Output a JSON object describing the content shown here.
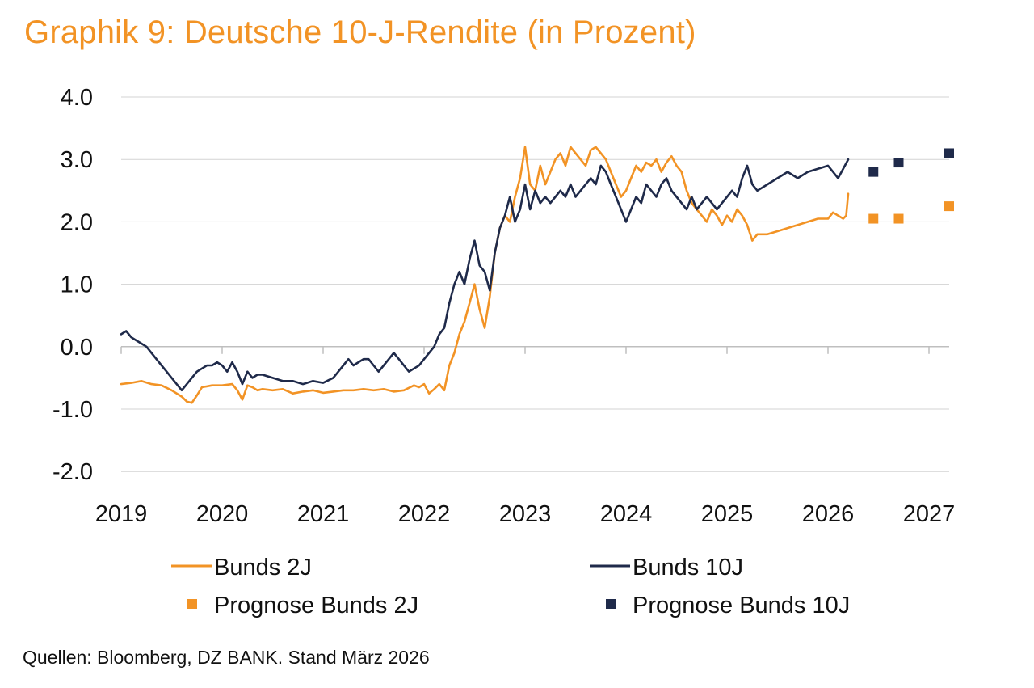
{
  "title": "Graphik 9: Deutsche 10-J-Rendite (in Prozent)",
  "source": "Quellen: Bloomberg, DZ BANK. Stand März 2026",
  "colors": {
    "bunds_2j": "#F29325",
    "bunds_10j": "#1F2A4A",
    "grid": "#D3D3D3",
    "title": "#F29325"
  },
  "chart_data": {
    "type": "line",
    "title": "Graphik 9: Deutsche 10-J-Rendite (in Prozent)",
    "xlabel": "",
    "ylabel": "",
    "xlim": [
      2019.0,
      2027.1
    ],
    "ylim": [
      -2.0,
      4.0
    ],
    "grid": "horizontal",
    "legend_position": "bottom",
    "x_ticks": [
      "2019",
      "2020",
      "2021",
      "2022",
      "2023",
      "2024",
      "2025",
      "2026",
      "2027"
    ],
    "y_ticks": [
      "4.0",
      "3.0",
      "2.0",
      "1.0",
      "0.0",
      "-1.0",
      "-2.0"
    ],
    "series": [
      {
        "name": "Bunds 2J",
        "kind": "line",
        "color": "#F29325",
        "x": [
          2019.0,
          2019.1,
          2019.2,
          2019.3,
          2019.4,
          2019.5,
          2019.6,
          2019.65,
          2019.7,
          2019.75,
          2019.8,
          2019.9,
          2020.0,
          2020.1,
          2020.15,
          2020.2,
          2020.25,
          2020.3,
          2020.35,
          2020.4,
          2020.5,
          2020.6,
          2020.7,
          2020.8,
          2020.9,
          2021.0,
          2021.1,
          2021.2,
          2021.3,
          2021.4,
          2021.5,
          2021.6,
          2021.7,
          2021.8,
          2021.9,
          2021.95,
          2022.0,
          2022.05,
          2022.1,
          2022.15,
          2022.2,
          2022.25,
          2022.3,
          2022.35,
          2022.4,
          2022.45,
          2022.5,
          2022.55,
          2022.6,
          2022.65,
          2022.7,
          2022.75,
          2022.8,
          2022.85,
          2022.9,
          2022.95,
          2023.0,
          2023.05,
          2023.1,
          2023.15,
          2023.2,
          2023.25,
          2023.3,
          2023.35,
          2023.4,
          2023.45,
          2023.5,
          2023.55,
          2023.6,
          2023.65,
          2023.7,
          2023.75,
          2023.8,
          2023.85,
          2023.9,
          2023.95,
          2024.0,
          2024.05,
          2024.1,
          2024.15,
          2024.2,
          2024.25,
          2024.3,
          2024.35,
          2024.4,
          2024.45,
          2024.5,
          2024.55,
          2024.6,
          2024.65,
          2024.7,
          2024.75,
          2024.8,
          2024.85,
          2024.9,
          2024.95,
          2025.0,
          2025.05,
          2025.1,
          2025.15,
          2025.2,
          2025.25,
          2025.3,
          2025.4,
          2025.5,
          2025.6,
          2025.7,
          2025.8,
          2025.9,
          2026.0,
          2026.05,
          2026.1,
          2026.15,
          2026.18,
          2026.2
        ],
        "y": [
          -0.6,
          -0.58,
          -0.55,
          -0.6,
          -0.62,
          -0.7,
          -0.8,
          -0.88,
          -0.9,
          -0.78,
          -0.65,
          -0.62,
          -0.62,
          -0.6,
          -0.7,
          -0.85,
          -0.62,
          -0.65,
          -0.7,
          -0.68,
          -0.7,
          -0.68,
          -0.75,
          -0.72,
          -0.7,
          -0.74,
          -0.72,
          -0.7,
          -0.7,
          -0.68,
          -0.7,
          -0.68,
          -0.72,
          -0.7,
          -0.62,
          -0.65,
          -0.6,
          -0.75,
          -0.68,
          -0.6,
          -0.7,
          -0.3,
          -0.1,
          0.2,
          0.4,
          0.7,
          1.0,
          0.6,
          0.3,
          0.8,
          1.5,
          1.9,
          2.1,
          2.0,
          2.4,
          2.7,
          3.2,
          2.6,
          2.5,
          2.9,
          2.6,
          2.8,
          3.0,
          3.1,
          2.9,
          3.2,
          3.1,
          3.0,
          2.9,
          3.15,
          3.2,
          3.1,
          3.0,
          2.8,
          2.6,
          2.4,
          2.5,
          2.7,
          2.9,
          2.8,
          2.95,
          2.9,
          3.0,
          2.8,
          2.95,
          3.05,
          2.9,
          2.8,
          2.5,
          2.3,
          2.2,
          2.1,
          2.0,
          2.2,
          2.1,
          1.95,
          2.1,
          2.0,
          2.2,
          2.1,
          1.95,
          1.7,
          1.8,
          1.8,
          1.85,
          1.9,
          1.95,
          2.0,
          2.05,
          2.05,
          2.15,
          2.1,
          2.05,
          2.1,
          2.45
        ]
      },
      {
        "name": "Bunds 10J",
        "kind": "line",
        "color": "#1F2A4A",
        "x": [
          2019.0,
          2019.05,
          2019.1,
          2019.15,
          2019.2,
          2019.25,
          2019.3,
          2019.35,
          2019.4,
          2019.45,
          2019.5,
          2019.55,
          2019.6,
          2019.65,
          2019.7,
          2019.75,
          2019.8,
          2019.85,
          2019.9,
          2019.95,
          2020.0,
          2020.05,
          2020.1,
          2020.15,
          2020.2,
          2020.25,
          2020.3,
          2020.35,
          2020.4,
          2020.5,
          2020.6,
          2020.7,
          2020.8,
          2020.9,
          2021.0,
          2021.1,
          2021.15,
          2021.2,
          2021.25,
          2021.3,
          2021.35,
          2021.4,
          2021.45,
          2021.5,
          2021.55,
          2021.6,
          2021.65,
          2021.7,
          2021.75,
          2021.8,
          2021.85,
          2021.9,
          2021.95,
          2022.0,
          2022.05,
          2022.1,
          2022.15,
          2022.2,
          2022.25,
          2022.3,
          2022.35,
          2022.4,
          2022.45,
          2022.5,
          2022.55,
          2022.6,
          2022.65,
          2022.7,
          2022.75,
          2022.8,
          2022.85,
          2022.9,
          2022.95,
          2023.0,
          2023.05,
          2023.1,
          2023.15,
          2023.2,
          2023.25,
          2023.3,
          2023.35,
          2023.4,
          2023.45,
          2023.5,
          2023.55,
          2023.6,
          2023.65,
          2023.7,
          2023.75,
          2023.8,
          2023.85,
          2023.9,
          2023.95,
          2024.0,
          2024.05,
          2024.1,
          2024.15,
          2024.2,
          2024.25,
          2024.3,
          2024.35,
          2024.4,
          2024.45,
          2024.5,
          2024.55,
          2024.6,
          2024.65,
          2024.7,
          2024.75,
          2024.8,
          2024.85,
          2024.9,
          2024.95,
          2025.0,
          2025.05,
          2025.1,
          2025.15,
          2025.2,
          2025.25,
          2025.3,
          2025.4,
          2025.5,
          2025.6,
          2025.7,
          2025.8,
          2025.9,
          2026.0,
          2026.05,
          2026.1,
          2026.15,
          2026.2
        ],
        "y": [
          0.2,
          0.25,
          0.15,
          0.1,
          0.05,
          0.0,
          -0.1,
          -0.2,
          -0.3,
          -0.4,
          -0.5,
          -0.6,
          -0.7,
          -0.6,
          -0.5,
          -0.4,
          -0.35,
          -0.3,
          -0.3,
          -0.25,
          -0.3,
          -0.4,
          -0.25,
          -0.4,
          -0.6,
          -0.4,
          -0.5,
          -0.45,
          -0.45,
          -0.5,
          -0.55,
          -0.55,
          -0.6,
          -0.55,
          -0.58,
          -0.5,
          -0.4,
          -0.3,
          -0.2,
          -0.3,
          -0.25,
          -0.2,
          -0.2,
          -0.3,
          -0.4,
          -0.3,
          -0.2,
          -0.1,
          -0.2,
          -0.3,
          -0.4,
          -0.35,
          -0.3,
          -0.2,
          -0.1,
          0.0,
          0.2,
          0.3,
          0.7,
          1.0,
          1.2,
          1.0,
          1.4,
          1.7,
          1.3,
          1.2,
          0.9,
          1.5,
          1.9,
          2.1,
          2.4,
          2.0,
          2.2,
          2.6,
          2.2,
          2.5,
          2.3,
          2.4,
          2.3,
          2.4,
          2.5,
          2.4,
          2.6,
          2.4,
          2.5,
          2.6,
          2.7,
          2.6,
          2.9,
          2.8,
          2.6,
          2.4,
          2.2,
          2.0,
          2.2,
          2.4,
          2.3,
          2.6,
          2.5,
          2.4,
          2.6,
          2.7,
          2.5,
          2.4,
          2.3,
          2.2,
          2.4,
          2.2,
          2.3,
          2.4,
          2.3,
          2.2,
          2.3,
          2.4,
          2.5,
          2.4,
          2.7,
          2.9,
          2.6,
          2.5,
          2.6,
          2.7,
          2.8,
          2.7,
          2.8,
          2.85,
          2.9,
          2.8,
          2.7,
          2.85,
          3.0
        ]
      },
      {
        "name": "Prognose Bunds 2J",
        "kind": "scatter",
        "marker": "square",
        "color": "#F29325",
        "x": [
          2026.45,
          2026.7,
          2027.2
        ],
        "y": [
          2.05,
          2.05,
          2.25
        ]
      },
      {
        "name": "Prognose Bunds 10J",
        "kind": "scatter",
        "marker": "square",
        "color": "#1F2A4A",
        "x": [
          2026.45,
          2026.7,
          2027.2
        ],
        "y": [
          2.8,
          2.95,
          3.1
        ]
      }
    ]
  }
}
